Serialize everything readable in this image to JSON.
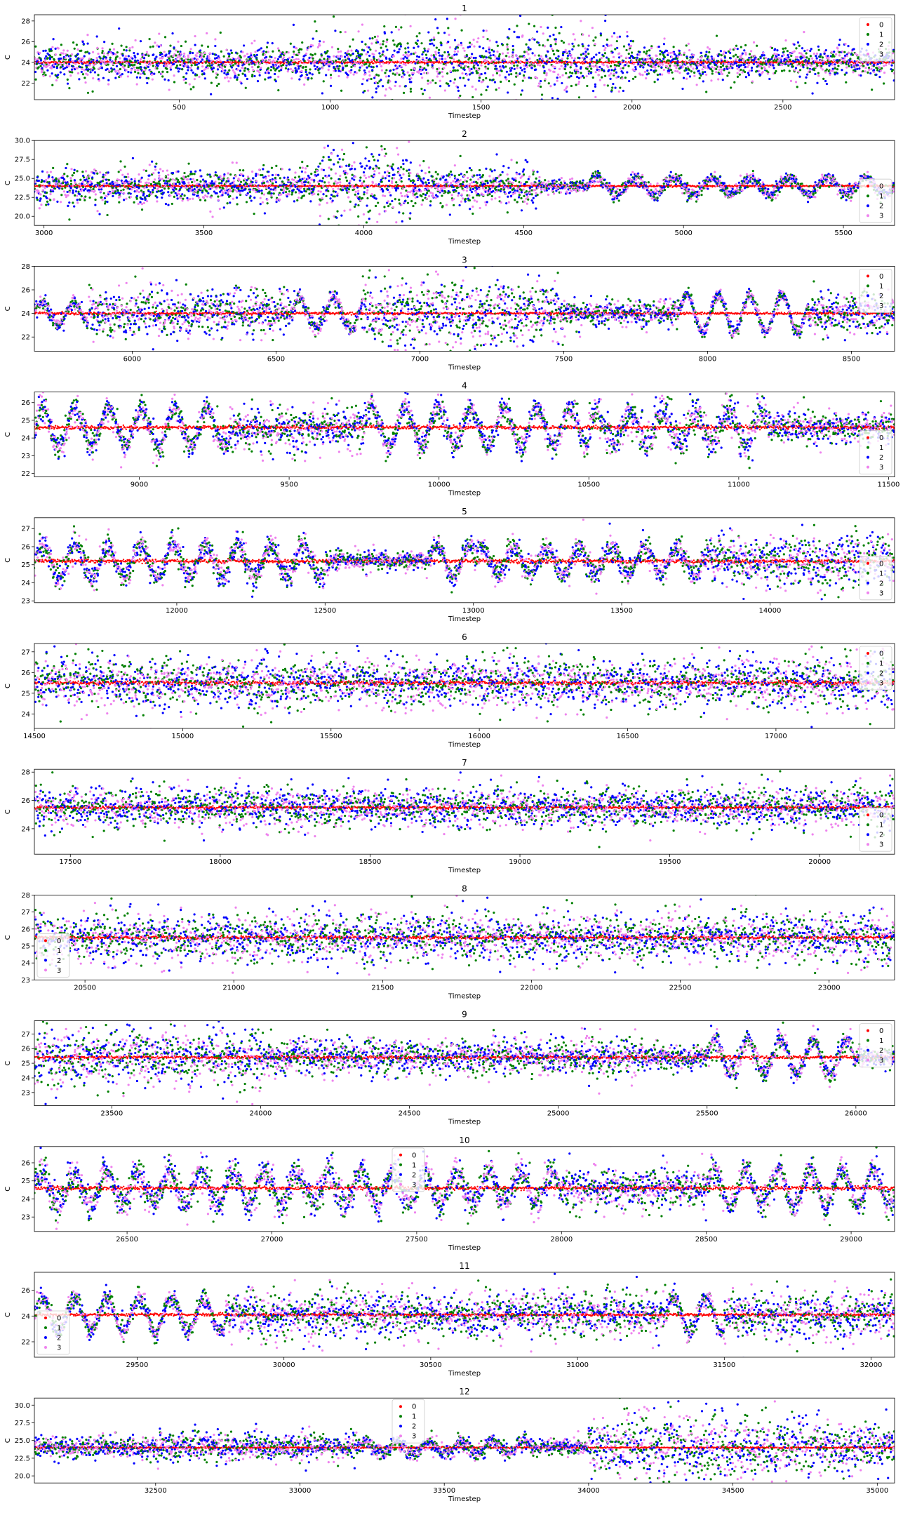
{
  "style": {
    "series_colors": {
      "0": "#ff0000",
      "1": "#008000",
      "2": "#0000ff",
      "3": "#ee82ee"
    }
  },
  "chart_data": [
    {
      "type": "scatter",
      "title": "1",
      "xlabel": "Timestep",
      "ylabel": "C",
      "xlim": [
        20,
        2870
      ],
      "ylim": [
        20.4,
        28.6
      ],
      "xticks": [
        500,
        1000,
        1500,
        2000,
        2500
      ],
      "yticks": [
        22,
        24,
        26,
        28
      ],
      "yticklabels": [
        "22",
        "24",
        "26",
        "28"
      ],
      "legend": "upper right",
      "series_names": [
        "0",
        "1",
        "2",
        "3"
      ],
      "baseline": 24,
      "noise": [
        [
          20,
          1100,
          1.0
        ],
        [
          1100,
          2000,
          1.8
        ],
        [
          2000,
          2870,
          0.9
        ]
      ],
      "wave": []
    },
    {
      "type": "scatter",
      "title": "2",
      "xlabel": "Timestep",
      "ylabel": "C",
      "xlim": [
        2970,
        5660
      ],
      "ylim": [
        18.8,
        30.0
      ],
      "xticks": [
        3000,
        3500,
        4000,
        4500,
        5000,
        5500
      ],
      "yticks": [
        20.0,
        22.5,
        25.0,
        27.5,
        30.0
      ],
      "yticklabels": [
        "20.0",
        "22.5",
        "25.0",
        "27.5",
        "30.0"
      ],
      "legend": "lower right",
      "series_names": [
        "0",
        "1",
        "2",
        "3"
      ],
      "baseline": 24,
      "noise": [
        [
          2970,
          3850,
          1.3
        ],
        [
          3850,
          4150,
          3.0
        ],
        [
          4150,
          4550,
          1.4
        ],
        [
          4550,
          5660,
          0.5
        ]
      ],
      "wave": [
        [
          4700,
          5660,
          1.1,
          120
        ]
      ]
    },
    {
      "type": "scatter",
      "title": "3",
      "xlabel": "Timestep",
      "ylabel": "C",
      "xlim": [
        5660,
        8650
      ],
      "ylim": [
        20.8,
        28.0
      ],
      "xticks": [
        6000,
        6500,
        7000,
        7500,
        8000,
        8500
      ],
      "yticks": [
        22,
        24,
        26,
        28
      ],
      "yticklabels": [
        "22",
        "24",
        "26",
        "28"
      ],
      "legend": "upper right",
      "series_names": [
        "0",
        "1",
        "2",
        "3"
      ],
      "baseline": 24,
      "noise": [
        [
          5660,
          5850,
          0.3
        ],
        [
          5850,
          6550,
          1.2
        ],
        [
          6550,
          6800,
          0.4
        ],
        [
          6800,
          7500,
          1.8
        ],
        [
          7500,
          7900,
          0.6
        ],
        [
          7900,
          8350,
          0.3
        ],
        [
          8350,
          8650,
          1.0
        ]
      ],
      "wave": [
        [
          5660,
          5850,
          1.0,
          110
        ],
        [
          6550,
          6800,
          1.3,
          120
        ],
        [
          7900,
          8350,
          1.6,
          110
        ]
      ]
    },
    {
      "type": "scatter",
      "title": "4",
      "xlabel": "Timestep",
      "ylabel": "C",
      "xlim": [
        8650,
        11520
      ],
      "ylim": [
        21.8,
        26.6
      ],
      "xticks": [
        9000,
        9500,
        10000,
        10500,
        11000,
        11500
      ],
      "yticks": [
        22,
        23,
        24,
        25,
        26
      ],
      "yticklabels": [
        "22",
        "23",
        "24",
        "25",
        "26"
      ],
      "legend": "lower right",
      "series_names": [
        "0",
        "1",
        "2",
        "3"
      ],
      "baseline": 24.6,
      "noise": [
        [
          8650,
          9300,
          0.4
        ],
        [
          9300,
          9750,
          0.7
        ],
        [
          9750,
          10500,
          0.4
        ],
        [
          10500,
          11100,
          0.6
        ],
        [
          11100,
          11520,
          0.5
        ]
      ],
      "wave": [
        [
          8650,
          9300,
          1.1,
          110
        ],
        [
          9750,
          10500,
          1.1,
          110
        ],
        [
          10500,
          11100,
          0.9,
          110
        ]
      ]
    },
    {
      "type": "scatter",
      "title": "5",
      "xlabel": "Timestep",
      "ylabel": "C",
      "xlim": [
        11520,
        14420
      ],
      "ylim": [
        22.9,
        27.6
      ],
      "xticks": [
        12000,
        12500,
        13000,
        13500,
        14000
      ],
      "yticks": [
        23,
        24,
        25,
        26,
        27
      ],
      "yticklabels": [
        "23",
        "24",
        "25",
        "26",
        "27"
      ],
      "legend": "lower right",
      "series_names": [
        "0",
        "1",
        "2",
        "3"
      ],
      "baseline": 25.2,
      "noise": [
        [
          11520,
          12500,
          0.4
        ],
        [
          12500,
          13000,
          0.3
        ],
        [
          13000,
          13800,
          0.4
        ],
        [
          13800,
          14420,
          0.8
        ]
      ],
      "wave": [
        [
          11520,
          12500,
          0.9,
          110
        ],
        [
          12850,
          13000,
          0.9,
          110
        ],
        [
          13000,
          13800,
          0.7,
          110
        ]
      ]
    },
    {
      "type": "scatter",
      "title": "6",
      "xlabel": "Timestep",
      "ylabel": "C",
      "xlim": [
        14500,
        17400
      ],
      "ylim": [
        23.3,
        27.4
      ],
      "xticks": [
        14500,
        15000,
        15500,
        16000,
        16500,
        17000
      ],
      "yticks": [
        24,
        25,
        26,
        27
      ],
      "yticklabels": [
        "24",
        "25",
        "26",
        "27"
      ],
      "legend": "upper right",
      "series_names": [
        "0",
        "1",
        "2",
        "3"
      ],
      "baseline": 25.5,
      "noise": [
        [
          14500,
          17400,
          0.7
        ]
      ],
      "wave": []
    },
    {
      "type": "scatter",
      "title": "7",
      "xlabel": "Timestep",
      "ylabel": "C",
      "xlim": [
        17380,
        20250
      ],
      "ylim": [
        22.2,
        28.2
      ],
      "xticks": [
        17500,
        18000,
        18500,
        19000,
        19500,
        20000
      ],
      "yticks": [
        24,
        26,
        28
      ],
      "yticklabels": [
        "24",
        "26",
        "28"
      ],
      "legend": "lower right",
      "series_names": [
        "0",
        "1",
        "2",
        "3"
      ],
      "baseline": 25.5,
      "noise": [
        [
          17380,
          20250,
          0.8
        ]
      ],
      "wave": []
    },
    {
      "type": "scatter",
      "title": "8",
      "xlabel": "Timestep",
      "ylabel": "C",
      "xlim": [
        20330,
        23220
      ],
      "ylim": [
        23.0,
        28.0
      ],
      "xticks": [
        20500,
        21000,
        21500,
        22000,
        22500,
        23000
      ],
      "yticks": [
        23,
        24,
        25,
        26,
        27,
        28
      ],
      "yticklabels": [
        "23",
        "24",
        "25",
        "26",
        "27",
        "28"
      ],
      "legend": "lower left",
      "series_names": [
        "0",
        "1",
        "2",
        "3"
      ],
      "baseline": 25.5,
      "noise": [
        [
          20330,
          23220,
          0.8
        ]
      ],
      "wave": []
    },
    {
      "type": "scatter",
      "title": "9",
      "xlabel": "Timestep",
      "ylabel": "C",
      "xlim": [
        23240,
        26130
      ],
      "ylim": [
        22.1,
        27.9
      ],
      "xticks": [
        23500,
        24000,
        24500,
        25000,
        25500,
        26000
      ],
      "yticks": [
        23,
        24,
        25,
        26,
        27
      ],
      "yticklabels": [
        "23",
        "24",
        "25",
        "26",
        "27"
      ],
      "legend": "upper right",
      "series_names": [
        "0",
        "1",
        "2",
        "3"
      ],
      "baseline": 25.4,
      "noise": [
        [
          23240,
          24000,
          1.1
        ],
        [
          24000,
          25300,
          0.7
        ],
        [
          25300,
          25700,
          0.5
        ],
        [
          25700,
          26130,
          0.4
        ]
      ],
      "wave": [
        [
          25500,
          26000,
          1.2,
          110
        ]
      ]
    },
    {
      "type": "scatter",
      "title": "10",
      "xlabel": "Timestep",
      "ylabel": "C",
      "xlim": [
        26180,
        29150
      ],
      "ylim": [
        22.2,
        26.9
      ],
      "xticks": [
        26500,
        27000,
        27500,
        28000,
        28500,
        29000
      ],
      "yticks": [
        23,
        24,
        25,
        26
      ],
      "yticklabels": [
        "23",
        "24",
        "25",
        "26"
      ],
      "legend": "upper center",
      "series_names": [
        "0",
        "1",
        "2",
        "3"
      ],
      "baseline": 24.6,
      "noise": [
        [
          26180,
          28000,
          0.5
        ],
        [
          28000,
          28500,
          0.6
        ],
        [
          28500,
          29150,
          0.4
        ]
      ],
      "wave": [
        [
          26180,
          28000,
          0.9,
          110
        ],
        [
          28500,
          29150,
          1.0,
          110
        ]
      ]
    },
    {
      "type": "scatter",
      "title": "11",
      "xlabel": "Timestep",
      "ylabel": "C",
      "xlim": [
        29150,
        32080
      ],
      "ylim": [
        20.8,
        27.4
      ],
      "xticks": [
        29500,
        30000,
        30500,
        31000,
        31500,
        32000
      ],
      "yticks": [
        22,
        24,
        26
      ],
      "yticklabels": [
        "22",
        "24",
        "26"
      ],
      "legend": "lower left",
      "series_names": [
        "0",
        "1",
        "2",
        "3"
      ],
      "baseline": 24.1,
      "noise": [
        [
          29150,
          29800,
          0.4
        ],
        [
          29800,
          31300,
          1.0
        ],
        [
          31300,
          31500,
          0.4
        ],
        [
          31500,
          32080,
          1.0
        ]
      ],
      "wave": [
        [
          29150,
          29800,
          1.3,
          110
        ],
        [
          31300,
          31500,
          1.4,
          110
        ]
      ]
    },
    {
      "type": "scatter",
      "title": "12",
      "xlabel": "Timestep",
      "ylabel": "C",
      "xlim": [
        32080,
        35060
      ],
      "ylim": [
        19.0,
        31.0
      ],
      "xticks": [
        32500,
        33000,
        33500,
        34000,
        34500,
        35000
      ],
      "yticks": [
        20.0,
        22.5,
        25.0,
        27.5,
        30.0
      ],
      "yticklabels": [
        "20.0",
        "22.5",
        "25.0",
        "27.5",
        "30.0"
      ],
      "legend": "upper center",
      "series_names": [
        "0",
        "1",
        "2",
        "3"
      ],
      "baseline": 24,
      "noise": [
        [
          32080,
          32500,
          0.8
        ],
        [
          32500,
          33200,
          1.1
        ],
        [
          33200,
          34000,
          0.6
        ],
        [
          34000,
          34800,
          2.6
        ],
        [
          34800,
          35060,
          2.0
        ]
      ],
      "wave": [
        [
          33200,
          33800,
          0.8,
          110
        ]
      ]
    }
  ]
}
